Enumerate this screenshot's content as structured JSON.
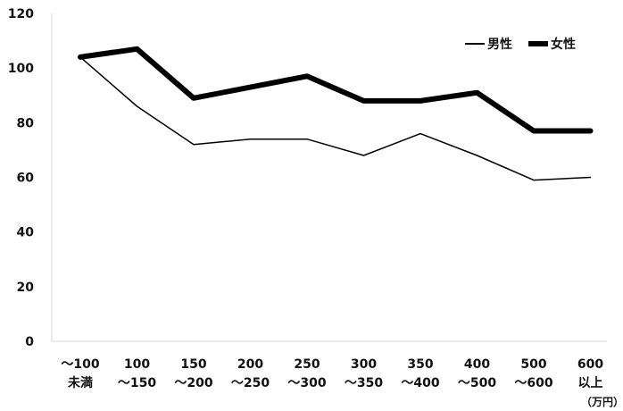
{
  "chart_data": {
    "type": "line",
    "categories": [
      [
        "～100",
        "未満"
      ],
      [
        "100",
        "～150"
      ],
      [
        "150",
        "～200"
      ],
      [
        "200",
        "～250"
      ],
      [
        "250",
        "～300"
      ],
      [
        "300",
        "～350"
      ],
      [
        "350",
        "～400"
      ],
      [
        "400",
        "～500"
      ],
      [
        "500",
        "～600"
      ],
      [
        "600",
        "以上"
      ]
    ],
    "x_unit": "（万円）",
    "series": [
      {
        "name": "男性",
        "values": [
          104,
          86,
          72,
          74,
          74,
          68,
          76,
          68,
          59,
          60
        ],
        "color": "#000000",
        "style": "thin"
      },
      {
        "name": "女性",
        "values": [
          104,
          107,
          89,
          93,
          97,
          88,
          88,
          91,
          77,
          77
        ],
        "color": "#000000",
        "style": "thick"
      }
    ],
    "ylim": [
      0,
      120
    ],
    "yticks": [
      0,
      20,
      40,
      60,
      80,
      100,
      120
    ],
    "grid": false,
    "legend": "top-right",
    "title": "",
    "xlabel": "",
    "ylabel": ""
  }
}
